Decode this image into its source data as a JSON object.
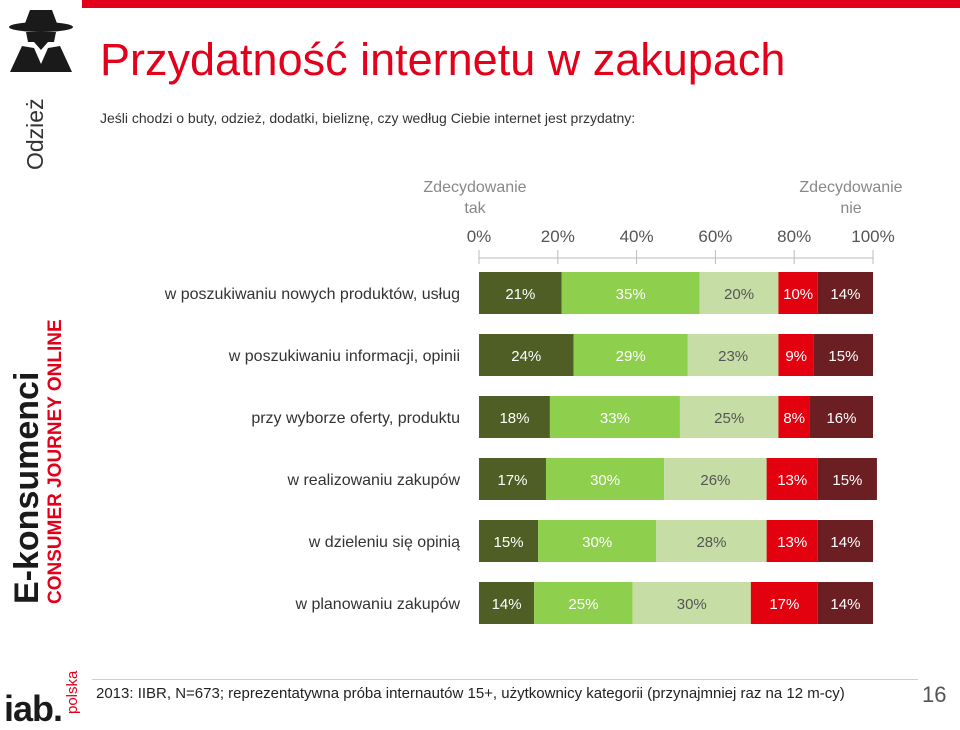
{
  "side": {
    "category": "Odzież",
    "brand_line1": "E-konsumenci",
    "brand_line2": "CONSUMER JOURNEY ONLINE"
  },
  "logo": {
    "main": "iab.",
    "sub": "polska"
  },
  "title": "Przydatność internetu w zakupach",
  "subtitle": "Jeśli chodzi o buty, odzież, dodatki, bieliznę, czy według Ciebie internet jest przydatny:",
  "footer": "2013: IIBR, N=673; reprezentatywna próba internautów 15+, użytkownicy kategorii (przynajmniej raz na 12 m-cy)",
  "page_number": "16",
  "colors": {
    "accent": "#e3001b",
    "segments": [
      "#4f5e24",
      "#8ecf4e",
      "#c7dda6",
      "#e3000f",
      "#6b1f22"
    ],
    "label_light": "#ffffff",
    "label_dark": "#555555"
  },
  "chart_data": {
    "type": "bar",
    "orientation": "horizontal",
    "stacked": true,
    "legend_left": "Zdecydowanie tak",
    "legend_right": "Zdecydowanie nie",
    "xlim": [
      0,
      100
    ],
    "x_ticks": [
      "0%",
      "20%",
      "40%",
      "60%",
      "80%",
      "100%"
    ],
    "categories": [
      "w poszukiwaniu nowych produktów, usług",
      "w poszukiwaniu informacji, opinii",
      "przy wyborze oferty, produktu",
      "w realizowaniu zakupów",
      "w dzieleniu się opinią",
      "w planowaniu zakupów"
    ],
    "series": [
      {
        "values": [
          21,
          24,
          18,
          17,
          15,
          14
        ]
      },
      {
        "values": [
          35,
          29,
          33,
          30,
          30,
          25
        ]
      },
      {
        "values": [
          20,
          23,
          25,
          26,
          28,
          30
        ]
      },
      {
        "values": [
          10,
          9,
          8,
          13,
          13,
          17
        ]
      },
      {
        "values": [
          14,
          15,
          16,
          15,
          14,
          14
        ]
      }
    ]
  }
}
